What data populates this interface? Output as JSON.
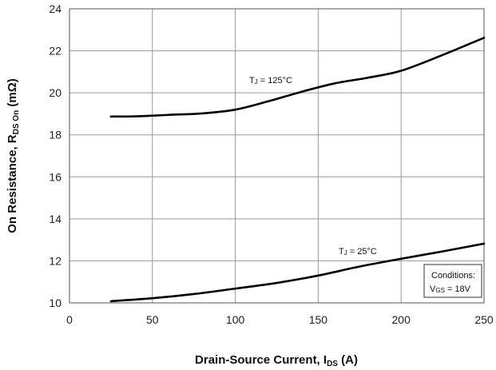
{
  "chart_data": {
    "type": "line",
    "xlabel": {
      "main": "Drain-Source Current, I",
      "sub": "DS",
      "unit": " (A)"
    },
    "ylabel": {
      "main": "On Resistance, R",
      "sub": "DS On",
      "unit": " (mΩ)"
    },
    "xlim": [
      0,
      250
    ],
    "ylim": [
      10,
      24
    ],
    "xticks": [
      0,
      50,
      100,
      150,
      200,
      250
    ],
    "yticks": [
      10,
      12,
      14,
      16,
      18,
      20,
      22,
      24
    ],
    "grid": true,
    "series": [
      {
        "label": {
          "main": "T",
          "sub": "J",
          "rest": " = 125°C"
        },
        "x": [
          25,
          40,
          60,
          80,
          100,
          120,
          140,
          160,
          180,
          200,
          225,
          250
        ],
        "y": [
          18.87,
          18.88,
          18.95,
          19.02,
          19.2,
          19.6,
          20.05,
          20.45,
          20.72,
          21.05,
          21.8,
          22.62
        ]
      },
      {
        "label": {
          "main": "T",
          "sub": "J",
          "rest": " = 25°C"
        },
        "x": [
          25,
          50,
          75,
          100,
          125,
          150,
          175,
          200,
          225,
          250
        ],
        "y": [
          10.08,
          10.22,
          10.42,
          10.68,
          10.95,
          11.3,
          11.73,
          12.1,
          12.45,
          12.82
        ]
      }
    ],
    "conditions": {
      "title": "Conditions:",
      "main": "V",
      "sub": "GS",
      "rest": " = 18V"
    }
  }
}
